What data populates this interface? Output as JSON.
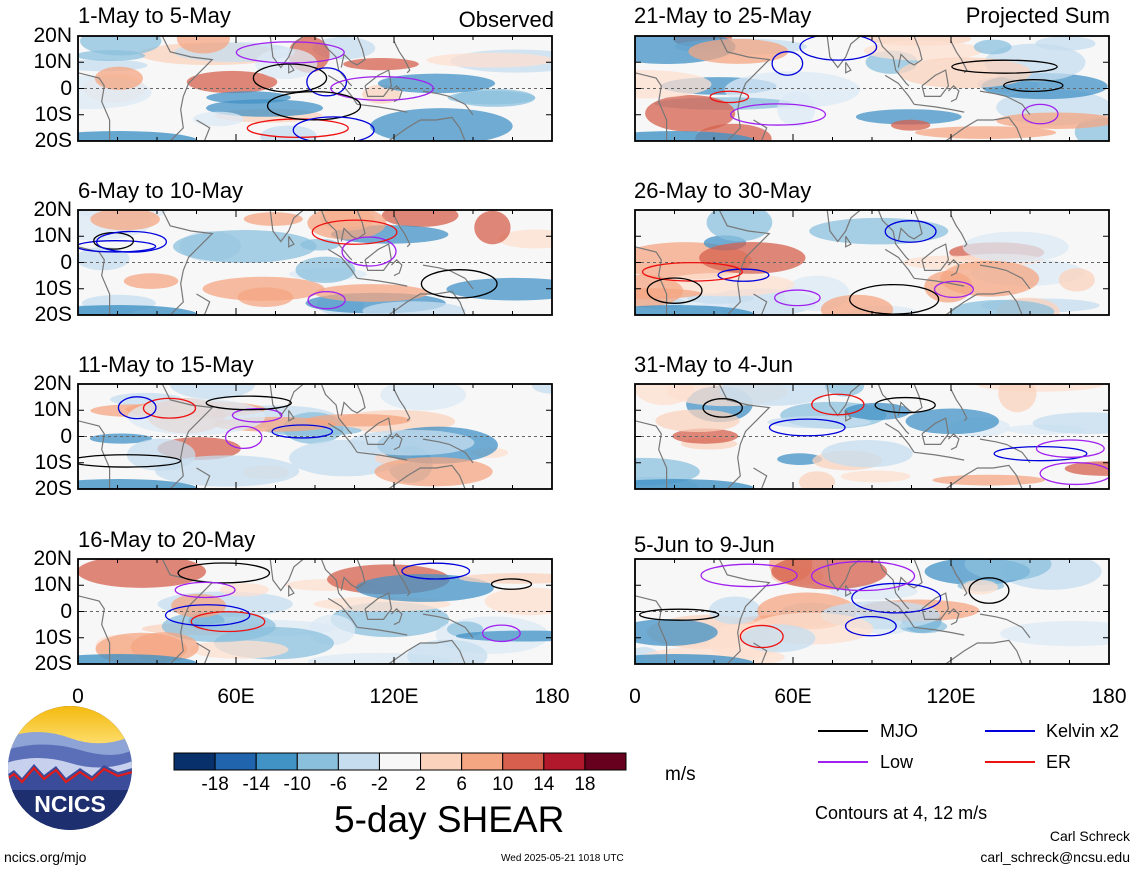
{
  "panels_left": [
    {
      "title": "1-May to 5-May",
      "tag": "Observed"
    },
    {
      "title": "6-May to 10-May",
      "tag": ""
    },
    {
      "title": "11-May to 15-May",
      "tag": ""
    },
    {
      "title": "16-May to 20-May",
      "tag": ""
    }
  ],
  "panels_right": [
    {
      "title": "21-May to 25-May",
      "tag": "Projected Sum"
    },
    {
      "title": "26-May to 30-May",
      "tag": ""
    },
    {
      "title": "31-May to 4-Jun",
      "tag": ""
    },
    {
      "title": "5-Jun to 9-Jun",
      "tag": ""
    }
  ],
  "lat_labels": [
    "20N",
    "10N",
    "0",
    "10S",
    "20S"
  ],
  "lon_labels": [
    "0",
    "60E",
    "120E",
    "180"
  ],
  "colorbar": {
    "ticks": [
      "-18",
      "-14",
      "-10",
      "-6",
      "-2",
      "2",
      "6",
      "10",
      "14",
      "18"
    ],
    "colors": [
      "#08306b",
      "#1f64ad",
      "#4192c5",
      "#8bc0dd",
      "#c6ddef",
      "#f7f7f7",
      "#fbd3bd",
      "#f4a582",
      "#d6604d",
      "#b2182b",
      "#67001f"
    ],
    "unit": "m/s",
    "title": "5-day SHEAR"
  },
  "legend": {
    "items": [
      {
        "label": "MJO",
        "color": "#000000"
      },
      {
        "label": "Kelvin x2",
        "color": "#0000dd"
      },
      {
        "label": "Low",
        "color": "#a020f0"
      },
      {
        "label": "ER",
        "color": "#ee1111"
      }
    ],
    "note": "Contours at 4, 12 m/s"
  },
  "logo": {
    "text": "NCICS"
  },
  "footer": {
    "left": "ncics.org/mjo",
    "center": "Wed 2025-05-21 1018 UTC",
    "right1": "Carl Schreck",
    "right2": "carl_schreck@ncsu.edu"
  }
}
